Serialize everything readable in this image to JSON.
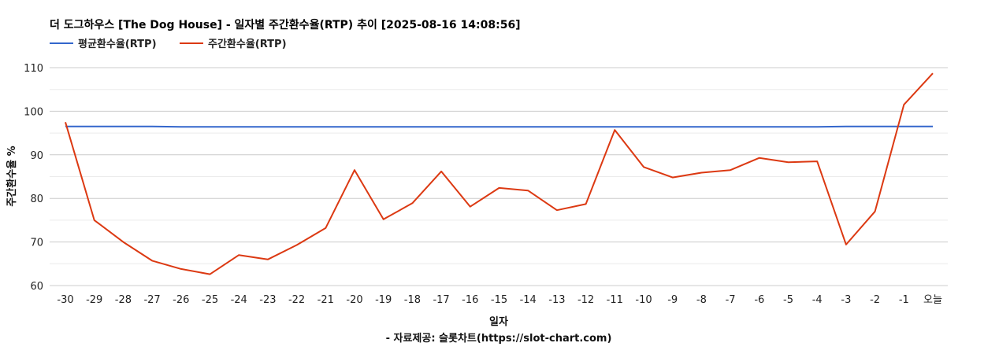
{
  "chart_data": {
    "type": "line",
    "title": "더 도그하우스 [The Dog House] - 일자별 주간환수율(RTP) 추이 [2025-08-16 14:08:56]",
    "xlabel": "일자",
    "ylabel": "주간환수율 %",
    "source": "- 자료제공: 슬롯차트(https://slot-chart.com)",
    "categories": [
      "-30",
      "-29",
      "-28",
      "-27",
      "-26",
      "-25",
      "-24",
      "-23",
      "-22",
      "-21",
      "-20",
      "-19",
      "-18",
      "-17",
      "-16",
      "-15",
      "-14",
      "-13",
      "-12",
      "-11",
      "-10",
      "-9",
      "-8",
      "-7",
      "-6",
      "-5",
      "-4",
      "-3",
      "-2",
      "-1",
      "오늘"
    ],
    "yticks": [
      "60",
      "70",
      "80",
      "90",
      "100",
      "110"
    ],
    "ylim": [
      60,
      112
    ],
    "grid": true,
    "legend": "top-left",
    "series": [
      {
        "name": "평균환수율(RTP)",
        "color": "#3366cc",
        "values": [
          96.5,
          96.5,
          96.5,
          96.5,
          96.4,
          96.4,
          96.4,
          96.4,
          96.4,
          96.4,
          96.4,
          96.4,
          96.4,
          96.4,
          96.4,
          96.4,
          96.4,
          96.4,
          96.4,
          96.4,
          96.4,
          96.4,
          96.4,
          96.4,
          96.4,
          96.4,
          96.4,
          96.5,
          96.5,
          96.5,
          96.5
        ]
      },
      {
        "name": "주간환수율(RTP)",
        "color": "#dc3912",
        "values": [
          97.5,
          75.0,
          70.0,
          65.7,
          63.8,
          62.6,
          67.0,
          66.0,
          69.3,
          73.2,
          86.5,
          75.2,
          78.9,
          86.2,
          78.1,
          82.4,
          81.8,
          77.3,
          78.7,
          95.7,
          87.2,
          84.8,
          85.9,
          86.5,
          89.3,
          88.3,
          88.5,
          69.4,
          77.0,
          101.5,
          108.7
        ]
      }
    ]
  }
}
